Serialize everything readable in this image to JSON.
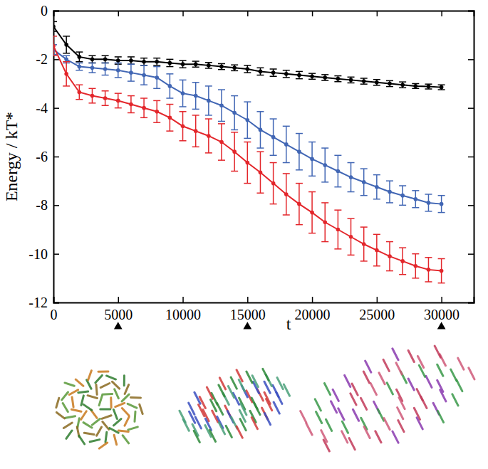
{
  "chart_data": {
    "type": "line",
    "x_label": "t",
    "y_label": "Energy / kT*",
    "x": [
      0,
      1000,
      2000,
      3000,
      4000,
      5000,
      6000,
      7000,
      8000,
      9000,
      10000,
      11000,
      12000,
      13000,
      14000,
      15000,
      16000,
      17000,
      18000,
      19000,
      20000,
      21000,
      22000,
      23000,
      24000,
      25000,
      26000,
      27000,
      28000,
      29000,
      30000
    ],
    "series": [
      {
        "color": "#000000",
        "marker": "circle",
        "values": [
          -0.65,
          -1.4,
          -1.9,
          -2.0,
          -2.0,
          -2.05,
          -2.05,
          -2.1,
          -2.1,
          -2.15,
          -2.2,
          -2.2,
          -2.25,
          -2.3,
          -2.35,
          -2.4,
          -2.5,
          -2.55,
          -2.6,
          -2.65,
          -2.7,
          -2.75,
          -2.8,
          -2.85,
          -2.9,
          -2.95,
          -3.0,
          -3.05,
          -3.1,
          -3.12,
          -3.15
        ],
        "errors": [
          0.2,
          0.35,
          0.2,
          0.15,
          0.15,
          0.15,
          0.15,
          0.15,
          0.15,
          0.15,
          0.15,
          0.12,
          0.12,
          0.12,
          0.12,
          0.15,
          0.15,
          0.15,
          0.15,
          0.15,
          0.12,
          0.12,
          0.12,
          0.12,
          0.12,
          0.12,
          0.12,
          0.12,
          0.1,
          0.1,
          0.1
        ]
      },
      {
        "color": "#4166b4",
        "marker": "circle",
        "values": [
          -1.6,
          -2.0,
          -2.3,
          -2.35,
          -2.4,
          -2.45,
          -2.55,
          -2.65,
          -2.75,
          -3.1,
          -3.4,
          -3.5,
          -3.7,
          -3.9,
          -4.2,
          -4.5,
          -4.9,
          -5.2,
          -5.5,
          -5.8,
          -6.1,
          -6.35,
          -6.6,
          -6.85,
          -7.05,
          -7.25,
          -7.45,
          -7.6,
          -7.75,
          -7.9,
          -7.95
        ],
        "errors": [
          0.2,
          0.15,
          0.15,
          0.2,
          0.25,
          0.3,
          0.35,
          0.4,
          0.45,
          0.5,
          0.55,
          0.55,
          0.6,
          0.65,
          0.7,
          0.75,
          0.75,
          0.75,
          0.75,
          0.75,
          0.7,
          0.7,
          0.65,
          0.6,
          0.55,
          0.5,
          0.45,
          0.4,
          0.35,
          0.35,
          0.35
        ]
      },
      {
        "color": "#e3262b",
        "marker": "circle",
        "values": [
          -1.45,
          -2.6,
          -3.35,
          -3.5,
          -3.6,
          -3.7,
          -3.85,
          -4.0,
          -4.15,
          -4.4,
          -4.75,
          -4.95,
          -5.15,
          -5.4,
          -5.8,
          -6.25,
          -6.65,
          -7.1,
          -7.55,
          -7.95,
          -8.3,
          -8.7,
          -9.0,
          -9.3,
          -9.6,
          -9.85,
          -10.1,
          -10.3,
          -10.5,
          -10.65,
          -10.7
        ],
        "errors": [
          0.4,
          0.5,
          0.3,
          0.3,
          0.3,
          0.3,
          0.35,
          0.4,
          0.45,
          0.55,
          0.6,
          0.65,
          0.7,
          0.75,
          0.8,
          0.85,
          0.85,
          0.85,
          0.85,
          0.85,
          0.85,
          0.8,
          0.8,
          0.75,
          0.7,
          0.65,
          0.6,
          0.55,
          0.5,
          0.5,
          0.5
        ]
      }
    ],
    "highlight_x": [
      5000,
      15000,
      30000
    ],
    "xlim": [
      0,
      32500
    ],
    "ylim": [
      -12,
      0
    ],
    "xticks": [
      0,
      5000,
      10000,
      15000,
      20000,
      25000,
      30000
    ],
    "yticks": [
      -12,
      -10,
      -8,
      -6,
      -4,
      -2,
      0
    ],
    "grid": false
  }
}
